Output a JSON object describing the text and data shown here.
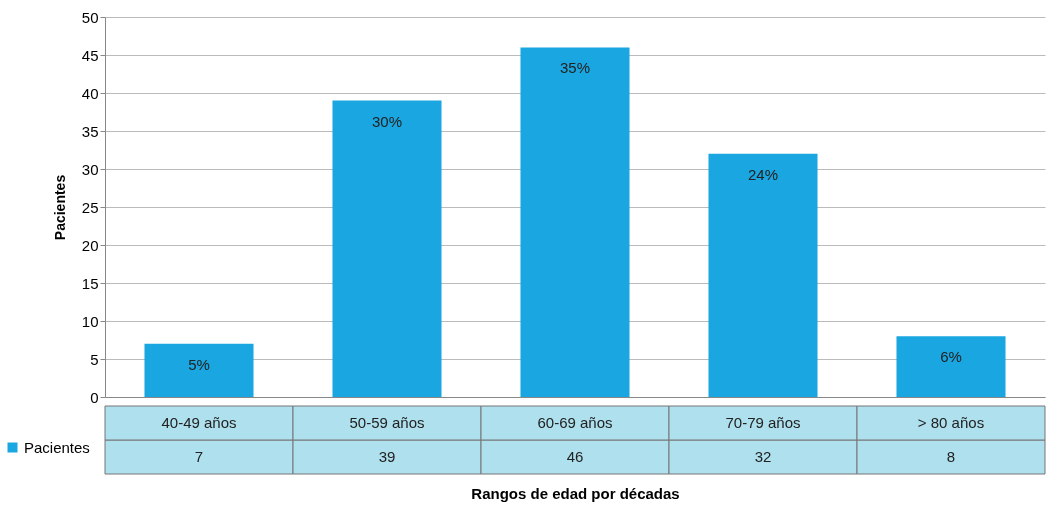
{
  "chart_data": {
    "type": "bar",
    "xlabel": "Rangos de edad por décadas",
    "ylabel": "Pacientes",
    "categories": [
      "40-49 años",
      "50-59 años",
      "60-69 años",
      "70-79 años",
      "> 80 años"
    ],
    "series": [
      {
        "name": "Pacientes",
        "color": "#1aa6e0",
        "values": [
          7,
          39,
          46,
          32,
          8
        ]
      }
    ],
    "annotations": [
      {
        "text": "5%",
        "x": "40-49 años",
        "y": 7
      },
      {
        "text": "30%",
        "x": "50-59 años",
        "y": 39
      },
      {
        "text": "35%",
        "x": "60-69 años",
        "y": 46
      },
      {
        "text": "24%",
        "x": "70-79 años",
        "y": 32
      },
      {
        "text": "6%",
        "x": "> 80 años",
        "y": 8
      }
    ],
    "ylim": [
      0,
      50
    ],
    "yticks": [
      0,
      5,
      10,
      15,
      20,
      25,
      30,
      35,
      40,
      45,
      50
    ],
    "grid": "y",
    "legend": "bottom left",
    "data_labels": true
  }
}
